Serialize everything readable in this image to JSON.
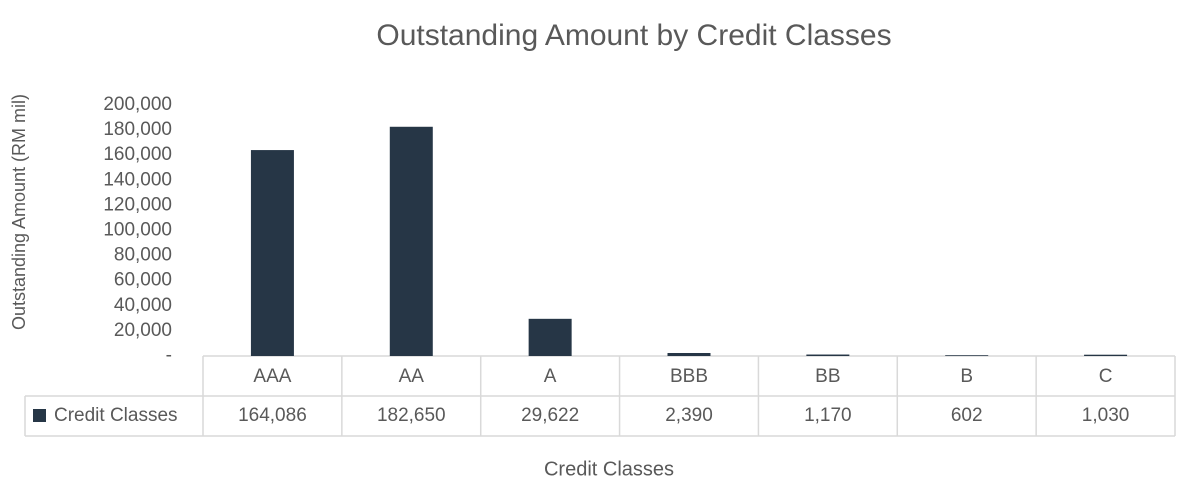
{
  "chart_data": {
    "type": "bar",
    "title": "Outstanding Amount by Credit Classes",
    "x_label": "Credit Classes",
    "y_label": "Outstanding Amount (RM mil)",
    "categories": [
      "AAA",
      "AA",
      "A",
      "BBB",
      "BB",
      "B",
      "C"
    ],
    "series": [
      {
        "name": "Credit Classes",
        "color": "#263646",
        "values": [
          164086,
          182650,
          29622,
          2390,
          1170,
          602,
          1030
        ],
        "value_labels": [
          "164,086",
          "182,650",
          "29,622",
          "2,390",
          "1,170",
          "602",
          "1,030"
        ]
      }
    ],
    "ylim": [
      0,
      200000
    ],
    "yticks": [
      {
        "value": 0,
        "label": "-"
      },
      {
        "value": 20000,
        "label": "20,000"
      },
      {
        "value": 40000,
        "label": "40,000"
      },
      {
        "value": 60000,
        "label": "60,000"
      },
      {
        "value": 80000,
        "label": "80,000"
      },
      {
        "value": 100000,
        "label": "100,000"
      },
      {
        "value": 120000,
        "label": "120,000"
      },
      {
        "value": 140000,
        "label": "140,000"
      },
      {
        "value": 160000,
        "label": "160,000"
      },
      {
        "value": 180000,
        "label": "180,000"
      },
      {
        "value": 200000,
        "label": "200,000"
      }
    ],
    "grid": false
  }
}
